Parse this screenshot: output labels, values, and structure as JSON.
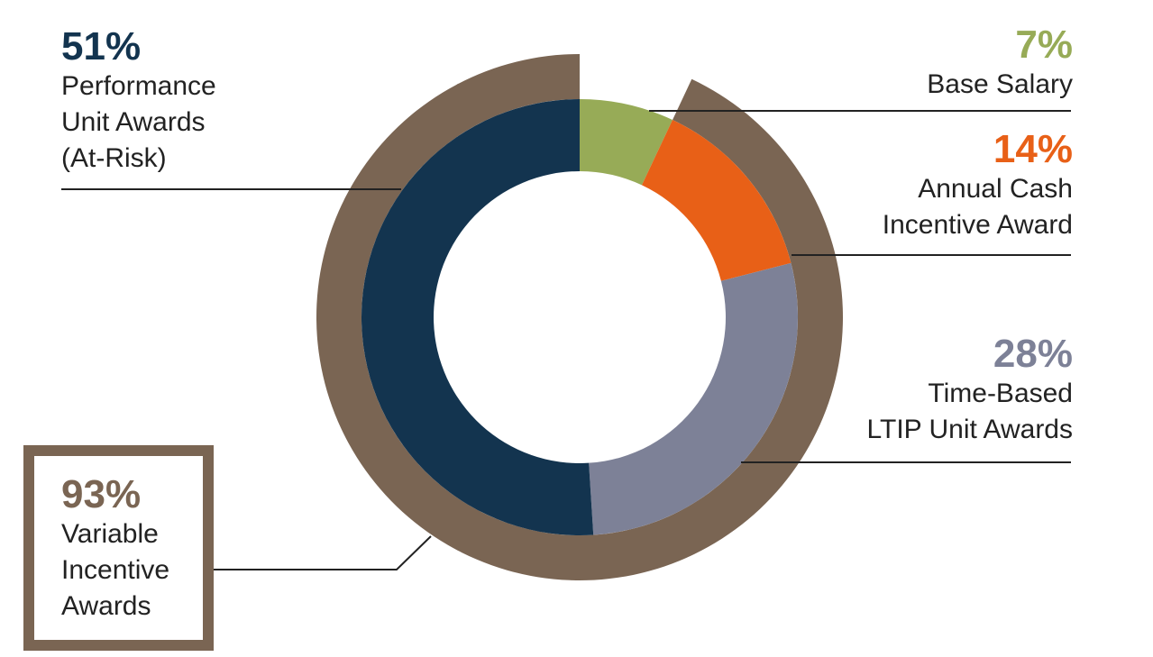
{
  "chart_data": {
    "type": "donut",
    "categories": [
      [
        "Base Salary"
      ],
      [
        "Annual Cash",
        "Incentive Award"
      ],
      [
        "Time-Based",
        "LTIP Unit Awards"
      ],
      [
        "Performance",
        "Unit Awards",
        "(At-Risk)"
      ]
    ],
    "values": [
      7,
      14,
      28,
      51
    ],
    "value_labels": [
      "7%",
      "14%",
      "28%",
      "51%"
    ],
    "colors": [
      "#97ab57",
      "#e86017",
      "#7d8197",
      "#13344f"
    ],
    "outer_ring": {
      "name": [
        "Variable",
        "Incentive",
        "Awards"
      ],
      "value": 93,
      "value_label": "93%",
      "color": "#7a6553"
    }
  }
}
